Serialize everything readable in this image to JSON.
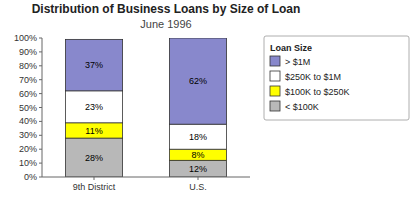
{
  "chart_data": {
    "type": "bar",
    "stacked": true,
    "title": "Distribution of Business Loans by Size of Loan",
    "subtitle": "June 1996",
    "categories": [
      "9th District",
      "U.S."
    ],
    "series": [
      {
        "name": "< $100K",
        "color": "#b8b8b8",
        "values": [
          28,
          12
        ],
        "value_labels": [
          "28%",
          "12%"
        ]
      },
      {
        "name": "$100K to $250K",
        "color": "#ffff00",
        "values": [
          11,
          8
        ],
        "value_labels": [
          "11%",
          "8%"
        ]
      },
      {
        "name": "$250K to $1M",
        "color": "#ffffff",
        "values": [
          23,
          18
        ],
        "value_labels": [
          "23%",
          "18%"
        ]
      },
      {
        "name": "> $1M",
        "color": "#8888cc",
        "values": [
          37,
          62
        ],
        "value_labels": [
          "37%",
          "62%"
        ]
      }
    ],
    "legend_title": "Loan Size",
    "legend": "right",
    "data_labels": true,
    "grid": false,
    "ylim": [
      0,
      100
    ],
    "yticks": [
      {
        "value": 0,
        "label": "0%"
      },
      {
        "value": 10,
        "label": "10%"
      },
      {
        "value": 20,
        "label": "20%"
      },
      {
        "value": 30,
        "label": "30%"
      },
      {
        "value": 40,
        "label": "40%"
      },
      {
        "value": 50,
        "label": "50%"
      },
      {
        "value": 60,
        "label": "60%"
      },
      {
        "value": 70,
        "label": "70%"
      },
      {
        "value": 80,
        "label": "80%"
      },
      {
        "value": 90,
        "label": "90%"
      },
      {
        "value": 100,
        "label": "100%"
      }
    ]
  }
}
